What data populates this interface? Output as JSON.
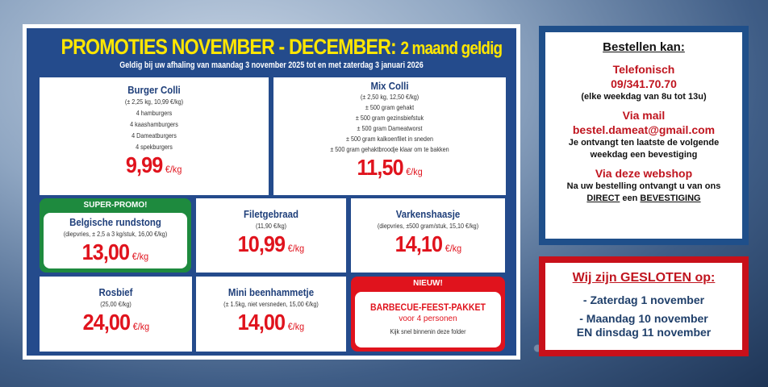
{
  "flyer": {
    "title_main": "PROMOTIES  NOVEMBER - DECEMBER:",
    "title_small": "2 maand geldig",
    "subtitle": "Geldig bij uw afhaling van maandag 3 november 2025 tot en met zaterdag 3 januari 2026",
    "unit": "€/kg",
    "products": [
      {
        "name": "Burger Colli",
        "details": [
          "(± 2,25 kg, 10,99 €/kg)",
          "4 hamburgers",
          "4 kaashamburgers",
          "4 Dameatburgers",
          "4 spekburgers"
        ],
        "price": "9,99"
      },
      {
        "name": "Mix Colli",
        "details": [
          "(± 2,50 kg, 12,50 €/kg)",
          "± 500 gram gehakt",
          "± 500 gram gezinsbiefstuk",
          "± 500 gram Dameatworst",
          "± 500 gram kalkoenfilet in sneden",
          "± 500 gram gehaktbroodje klaar om te bakken"
        ],
        "price": "11,50"
      },
      {
        "badge": "SUPER-PROMO!",
        "name": "Belgische rundstong",
        "details": [
          "(diepvries, ± 2,5 a 3 kg/stuk, 16,00 €/kg)"
        ],
        "price": "13,00"
      },
      {
        "name": "Filetgebraad",
        "details": [
          "(11,90 €/kg)"
        ],
        "price": "10,99"
      },
      {
        "name": "Varkenshaasje",
        "details": [
          "(diepvries, ±500 gram/stuk, 15,10 €/kg)"
        ],
        "price": "14,10"
      },
      {
        "name": "Rosbief",
        "details": [
          "(25,00 €/kg)"
        ],
        "price": "24,00"
      },
      {
        "name": "Mini beenhammetje",
        "details": [
          "(± 1.5kg, niet versneden, 15,00 €/kg)"
        ],
        "price": "14,00"
      },
      {
        "badge": "NIEUW!",
        "name": "BARBECUE-FEEST-PAKKET",
        "sub": "voor 4 personen",
        "note": "Kijk snel binnenin deze folder"
      }
    ]
  },
  "order": {
    "title": "Bestellen kan:",
    "phone_label": "Telefonisch",
    "phone": "09/341.70.70",
    "phone_hours": "(elke weekdag van 8u tot 13u)",
    "mail_label": "Via mail",
    "mail": "bestel.dameat@gmail.com",
    "mail_note": "Je ontvangt ten laatste de volgende weekdag een bevestiging",
    "shop_label": "Via deze webshop",
    "shop_note": "Na uw bestelling ontvangt u van ons",
    "shop_direct": "DIRECT",
    "shop_een": " een ",
    "shop_confirm": "BEVESTIGING"
  },
  "closed": {
    "title": "Wij zijn GESLOTEN op:",
    "dates": [
      "- Zaterdag 1 november",
      "- Maandag 10 november",
      "EN dinsdag 11 november"
    ]
  },
  "colors": {
    "flyer_blue": "#244b8c",
    "title_yellow": "#ffe600",
    "price_red": "#e0131d",
    "promo_green": "#1e8a3e"
  }
}
